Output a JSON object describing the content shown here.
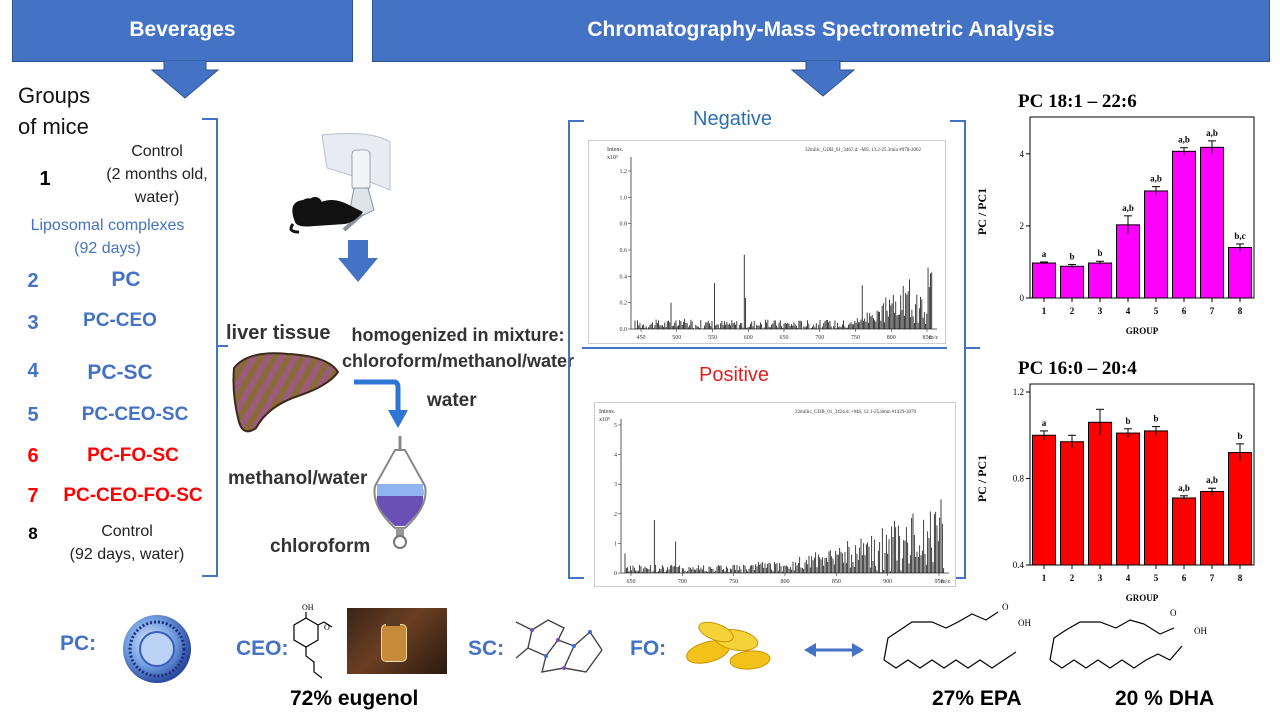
{
  "banners": {
    "left": "Beverages",
    "right": "Chromatography-Mass Spectrometric Analysis"
  },
  "groups_title": "Groups\nof mice",
  "groups": [
    {
      "num": "1",
      "label": "Control\n(2 months old,\nwater)",
      "num_color": "#000000",
      "label_color": "#222222"
    },
    {
      "num": "2",
      "label": "PC",
      "num_color": "#4472c4",
      "label_color": "#4472c4"
    },
    {
      "num": "3",
      "label": "PC-CEO",
      "num_color": "#4472c4",
      "label_color": "#4472c4"
    },
    {
      "num": "4",
      "label": "PC-SC",
      "num_color": "#4472c4",
      "label_color": "#4472c4"
    },
    {
      "num": "5",
      "label": "PC-CEO-SC",
      "num_color": "#4472c4",
      "label_color": "#4472c4"
    },
    {
      "num": "6",
      "label": "PC-FO-SC",
      "num_color": "#ff0000",
      "label_color": "#ff0000"
    },
    {
      "num": "7",
      "label": "PC-CEO-FO-SC",
      "num_color": "#ff0000",
      "label_color": "#ff0000"
    },
    {
      "num": "8",
      "label": "Control\n(92 days, water)",
      "num_color": "#000000",
      "label_color": "#222222"
    }
  ],
  "liposomal_note": "Liposomal complexes\n(92 days)",
  "prep": {
    "liver": "liver tissue",
    "homog": "homogenized in mixture:\nchloroform/methanol/water",
    "water": "water",
    "methanol": "methanol/water",
    "chloroform": "chloroform"
  },
  "spectra": {
    "negative_label": "Negative",
    "positive_label": "Positive",
    "neg_header": "32milic_GDB_01_3467.d: -MS, 13.2-25.3min #978-3002",
    "pos_header": "32millic_GDB_01_3424.d: +MS, 12.1-25.8min #1429-3070",
    "neg_intens": "Intens.\nx10⁵",
    "pos_intens": "Intens.\nx10⁵",
    "neg_yticks": [
      "1.2",
      "1.0",
      "0.8",
      "0.6",
      "0.4",
      "0.2",
      "0.0"
    ],
    "pos_yticks": [
      "5",
      "4",
      "3",
      "2",
      "1",
      "0"
    ],
    "neg_xticks": [
      "450",
      "500",
      "550",
      "600",
      "650",
      "700",
      "750",
      "800",
      "850"
    ],
    "pos_xticks": [
      "650",
      "700",
      "750",
      "800",
      "850",
      "900",
      "950"
    ],
    "mz": "m/z"
  },
  "chart_data": [
    {
      "type": "bar",
      "title": "PC 18:1 – 22:6",
      "xlabel": "GROUP",
      "ylabel": "PC / PC1",
      "categories": [
        "1",
        "2",
        "3",
        "4",
        "5",
        "6",
        "7",
        "8"
      ],
      "values": [
        0.97,
        0.88,
        0.97,
        2.03,
        2.97,
        4.07,
        4.18,
        1.4
      ],
      "errors": [
        0.03,
        0.05,
        0.05,
        0.25,
        0.12,
        0.1,
        0.18,
        0.1
      ],
      "annotations": [
        "a",
        "b",
        "b",
        "a,b",
        "a,b",
        "a,b",
        "a,b",
        "b,c"
      ],
      "ylim": [
        0,
        4.8
      ],
      "yticks": [
        "0",
        "2",
        "4"
      ],
      "color": "#ff00ff"
    },
    {
      "type": "bar",
      "title": "PC 16:0 – 20:4",
      "xlabel": "GROUP",
      "ylabel": "PC / PC1",
      "categories": [
        "1",
        "2",
        "3",
        "4",
        "5",
        "6",
        "7",
        "8"
      ],
      "values": [
        1.0,
        0.97,
        1.06,
        1.01,
        1.02,
        0.71,
        0.74,
        0.92
      ],
      "errors": [
        0.02,
        0.03,
        0.06,
        0.02,
        0.02,
        0.01,
        0.015,
        0.04
      ],
      "annotations": [
        "a",
        "",
        "",
        "b",
        "b",
        "a,b",
        "a,b",
        "b"
      ],
      "ylim": [
        0.4,
        1.2
      ],
      "yticks": [
        "0.4",
        "0.8",
        "1.2"
      ],
      "color": "#ff0000"
    }
  ],
  "bottom": {
    "pc": "PC:",
    "ceo": "CEO:",
    "sc": "SC:",
    "fo": "FO:",
    "eugenol": "72% eugenol",
    "epa": "27% EPA",
    "dha": "20 % DHA",
    "oh": "OH",
    "o": "O"
  },
  "colors": {
    "accent": "#4472c4",
    "red": "#ff0000",
    "magenta": "#ff00ff"
  }
}
